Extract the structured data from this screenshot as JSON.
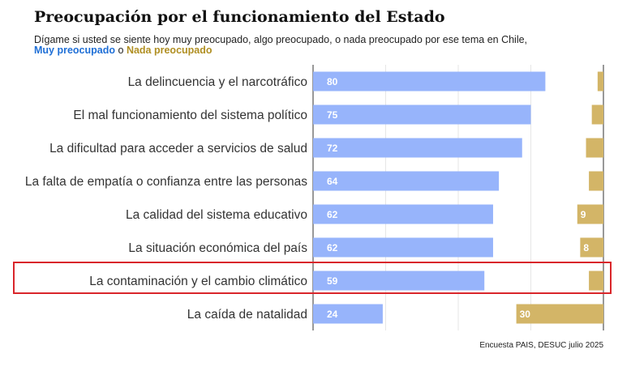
{
  "title": "Preocupación por el funcionamiento del Estado",
  "subtitle": "Dígame si usted se siente hoy muy preocupado, algo preocupado, o nada preocupado por ese tema en Chile,",
  "legend": {
    "series_a": "Muy preocupado",
    "connector": "o",
    "series_b": "Nada preocupado"
  },
  "source": "Encuesta PAIS, DESUC julio 2025",
  "colors": {
    "muy": "#97b4fb",
    "nada": "#d3b567",
    "highlight": "#d9262b",
    "legend_muy": "#1f6fd6",
    "legend_nada": "#b08f22"
  },
  "chart_data": {
    "type": "bar",
    "categories": [
      "La delincuencia y el narcotráfico",
      "El mal funcionamiento del sistema político",
      "La dificultad para acceder a servicios de salud",
      "La falta de empatía o confianza entre las personas",
      "La calidad del sistema educativo",
      "La situación económica del país",
      "La contaminación y el cambio climático",
      "La caída de natalidad"
    ],
    "series": [
      {
        "name": "Muy preocupado",
        "values": [
          80,
          75,
          72,
          64,
          62,
          62,
          59,
          24
        ],
        "labels": [
          "80",
          "75",
          "72",
          "64",
          "62",
          "62",
          "59",
          "24"
        ]
      },
      {
        "name": "Nada preocupado",
        "values": [
          2,
          4,
          6,
          5,
          9,
          8,
          5,
          30
        ],
        "labels": [
          "",
          "",
          "",
          "",
          "9",
          "8",
          "",
          "30"
        ]
      }
    ],
    "xlim": [
      0,
      100
    ],
    "highlighted_category": "La contaminación y el cambio climático"
  }
}
